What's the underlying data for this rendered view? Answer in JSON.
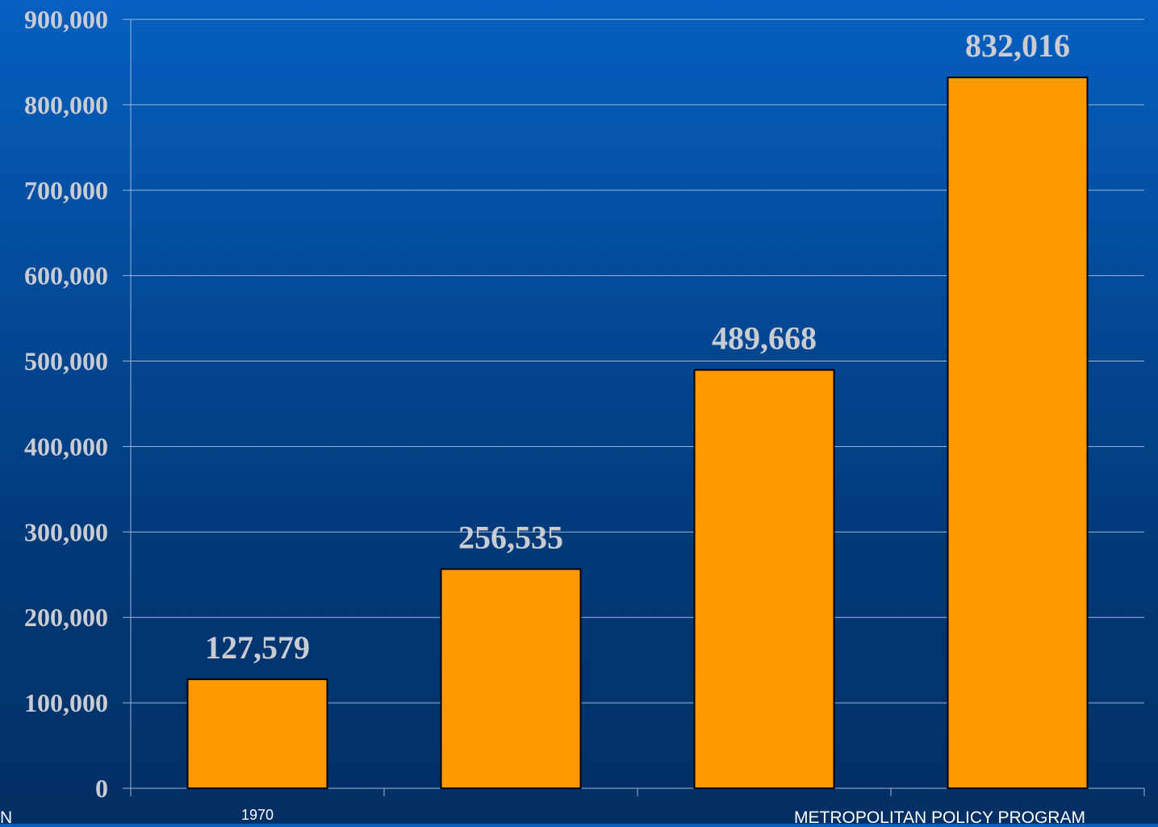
{
  "chart_data": {
    "type": "bar",
    "categories": [
      "1970",
      "",
      "",
      ""
    ],
    "values": [
      127579,
      256535,
      489668,
      832016
    ],
    "data_labels": [
      "127,579",
      "256,535",
      "489,668",
      "832,016"
    ],
    "ylim": [
      0,
      900000
    ],
    "yticks": [
      0,
      100000,
      200000,
      300000,
      400000,
      500000,
      600000,
      700000,
      800000,
      900000
    ],
    "ytick_labels": [
      "0",
      "100,000",
      "200,000",
      "300,000",
      "400,000",
      "500,000",
      "600,000",
      "700,000",
      "800,000",
      "900,000"
    ],
    "grid": true,
    "bar_color": "#ff9900",
    "bar_edge_color": "#000000",
    "gridline_color": "#9fb6d8",
    "label_color": "#c9ccd3"
  },
  "footer": {
    "left_text": "N",
    "right_text": "METROPOLITAN POLICY PROGRAM"
  }
}
